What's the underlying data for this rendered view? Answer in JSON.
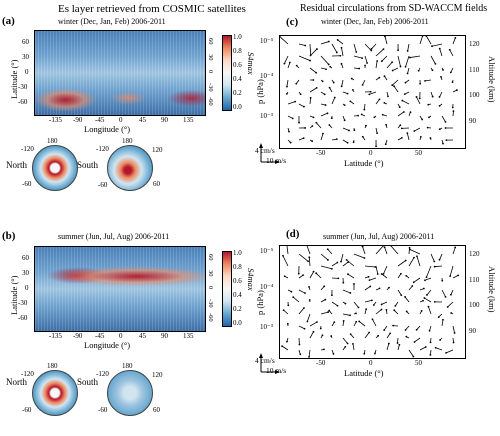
{
  "titles": {
    "left": "Es layer retrieved from COSMIC satellites",
    "right": "Residual circulations from SD-WACCM fields"
  },
  "panels": {
    "a": {
      "label": "(a)",
      "subtitle": "winter (Dec, Jan, Feb)  2006-2011"
    },
    "b": {
      "label": "(b)",
      "subtitle": "summer (Jun, Jul, Aug)  2006-2011"
    },
    "c": {
      "label": "(c)",
      "subtitle": "winter (Dec, Jan, Feb)  2006-2011"
    },
    "d": {
      "label": "(d)",
      "subtitle": "summer (Jun, Jul, Aug)  2006-2011"
    }
  },
  "map_axes": {
    "xlabel": "Longitude (°)",
    "ylabel": "Latitude (°)",
    "xticks": [
      "-135",
      "-90",
      "-45",
      "0",
      "45",
      "90",
      "135"
    ],
    "yticks": [
      "60",
      "30",
      "0",
      "-30",
      "-60"
    ],
    "yticks_right": [
      "60",
      "30",
      "0",
      "-30",
      "-60"
    ]
  },
  "colorbar": {
    "label": "S4max",
    "ticks": [
      "1.0",
      "0.8",
      "0.6",
      "0.4",
      "0.2",
      "0.0"
    ]
  },
  "polar": {
    "north": "North",
    "south": "South",
    "ticks": {
      "top": "180",
      "ul": "-120",
      "ur": "120",
      "ll": "-60",
      "lr": "60",
      "bottom": "0"
    }
  },
  "quiver_axes": {
    "ylabel_left": "p (hPa)",
    "ylabel_right": "Altitude (km)",
    "xlabel": "Latitude (°)",
    "xticks": [
      "-50",
      "0",
      "50"
    ],
    "pticks": [
      "10⁻⁵",
      "10⁻⁴",
      "10⁻³"
    ],
    "altticks": [
      "120",
      "110",
      "100",
      "90"
    ],
    "ref_vertical": "4 cm/s",
    "ref_horizontal": "10 m/s"
  },
  "colors": {
    "high": "#b2182b",
    "mid": "#f7f7f7",
    "low": "#2166ac"
  }
}
